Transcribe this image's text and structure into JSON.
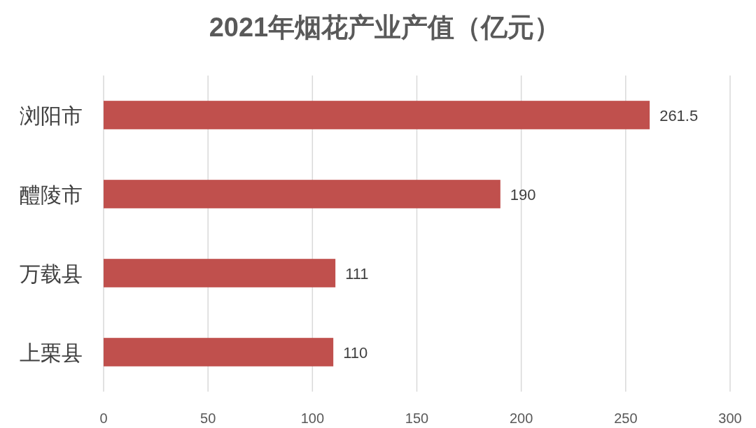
{
  "chart_data": {
    "type": "bar",
    "orientation": "horizontal",
    "title": "2021年烟花产业产值（亿元）",
    "categories": [
      "浏阳市",
      "醴陵市",
      "万载县",
      "上栗县"
    ],
    "values": [
      261.5,
      190,
      111,
      110
    ],
    "color": "#c0504d",
    "xlim": [
      0,
      300
    ],
    "xticks": [
      0,
      50,
      100,
      150,
      200,
      250,
      300
    ],
    "grid": "x",
    "data_labels": true
  }
}
